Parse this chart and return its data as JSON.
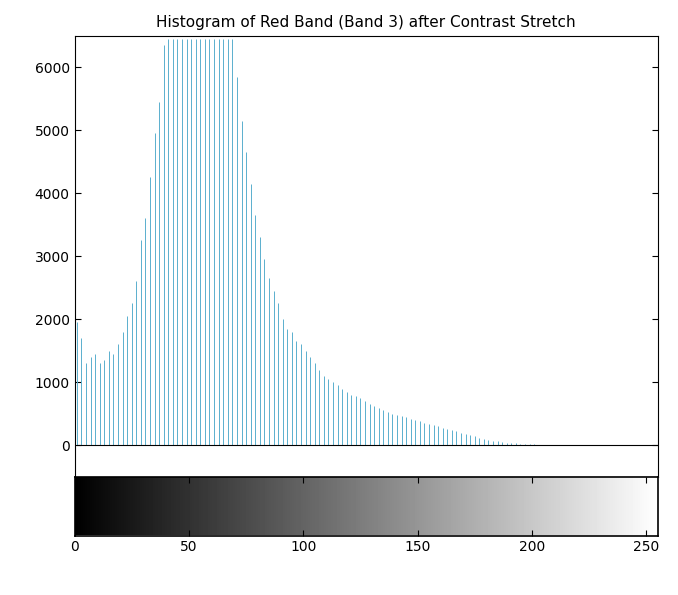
{
  "title": "Histogram of Red Band (Band 3) after Contrast Stretch",
  "xlim": [
    0,
    255
  ],
  "stem_color": "#5AAFCE",
  "yticks": [
    0,
    1000,
    2000,
    3000,
    4000,
    5000,
    6000
  ],
  "xticks": [
    0,
    50,
    100,
    150,
    200,
    250
  ],
  "bg_color": "white",
  "title_fontsize": 11,
  "hist_x": [
    1,
    3,
    5,
    7,
    9,
    11,
    13,
    15,
    17,
    19,
    21,
    23,
    25,
    27,
    29,
    31,
    33,
    35,
    37,
    39,
    41,
    43,
    45,
    47,
    49,
    51,
    53,
    55,
    57,
    59,
    61,
    63,
    65,
    67,
    69,
    71,
    73,
    75,
    77,
    79,
    81,
    83,
    85,
    87,
    89,
    91,
    93,
    95,
    97,
    99,
    101,
    103,
    105,
    107,
    109,
    111,
    113,
    115,
    117,
    119,
    121,
    123,
    125,
    127,
    129,
    131,
    133,
    135,
    137,
    139,
    141,
    143,
    145,
    147,
    149,
    151,
    153,
    155,
    157,
    159,
    161,
    163,
    165,
    167,
    169,
    171,
    173,
    175,
    177,
    179,
    181,
    183,
    185,
    187,
    189,
    191,
    193,
    195,
    197,
    199,
    201,
    203,
    205,
    207,
    209,
    211,
    213,
    215,
    217,
    219,
    221,
    223,
    225,
    227,
    229,
    231,
    233,
    235,
    237,
    239,
    241,
    243,
    245,
    247,
    249,
    251,
    253,
    255
  ],
  "hist_y": [
    1950,
    1700,
    1300,
    1400,
    1450,
    1300,
    1350,
    1500,
    1450,
    1600,
    1800,
    2050,
    2250,
    2600,
    3250,
    3600,
    4250,
    4950,
    5450,
    6350,
    6450,
    6450,
    6450,
    6450,
    6450,
    6450,
    6450,
    6450,
    6450,
    6450,
    6450,
    6450,
    6450,
    6450,
    6450,
    5850,
    5150,
    4650,
    4150,
    3650,
    3300,
    2950,
    2650,
    2450,
    2250,
    2000,
    1850,
    1800,
    1650,
    1600,
    1500,
    1400,
    1300,
    1200,
    1100,
    1050,
    1000,
    950,
    900,
    850,
    800,
    780,
    750,
    700,
    650,
    620,
    590,
    560,
    530,
    500,
    480,
    460,
    440,
    420,
    400,
    380,
    360,
    340,
    320,
    300,
    280,
    260,
    240,
    220,
    200,
    180,
    160,
    140,
    120,
    100,
    80,
    70,
    60,
    50,
    40,
    35,
    30,
    25,
    20,
    15,
    12,
    10,
    8,
    6,
    5,
    4,
    3,
    2,
    2,
    1,
    1,
    1,
    0,
    0,
    0,
    0,
    0,
    0,
    0,
    0,
    0,
    0,
    0,
    0,
    0,
    0,
    0,
    0
  ]
}
